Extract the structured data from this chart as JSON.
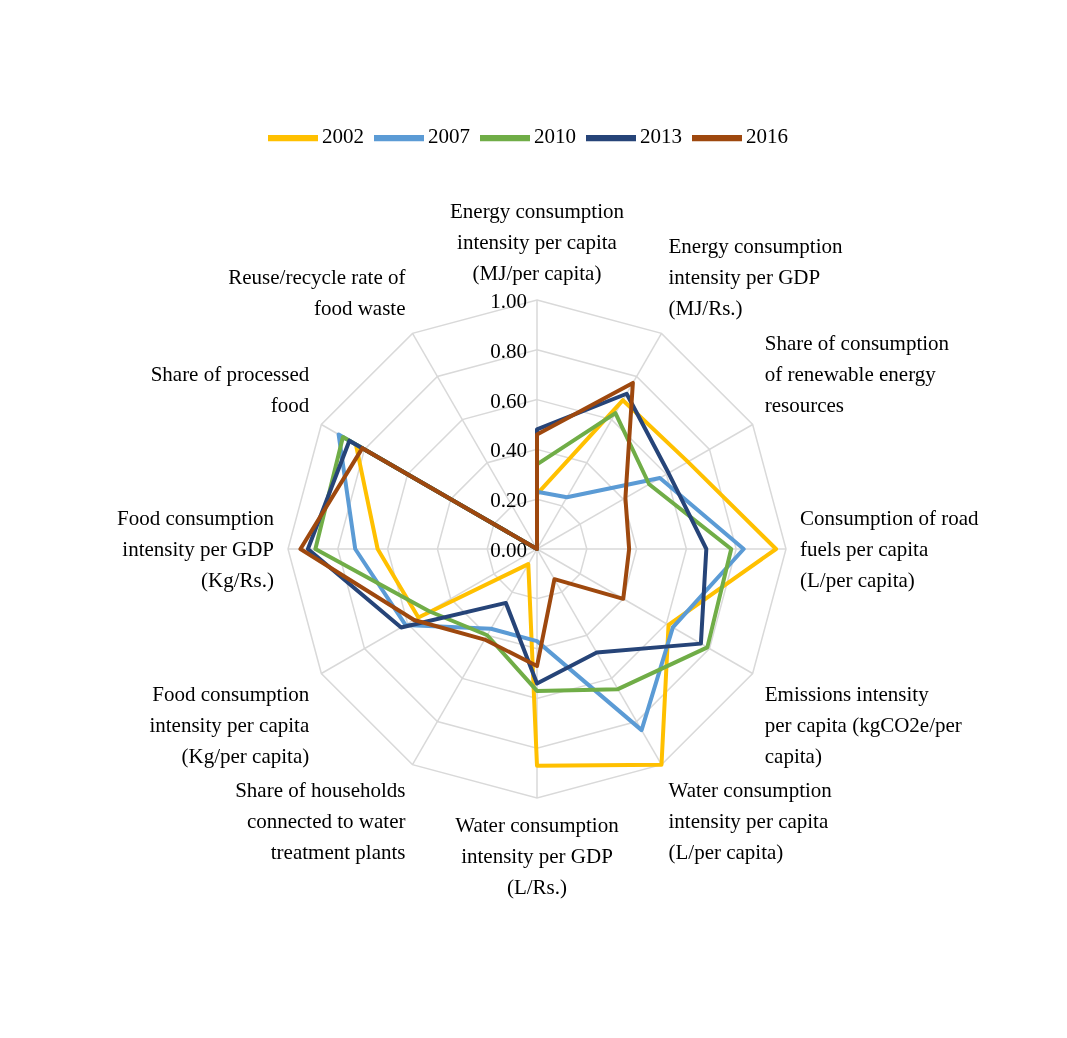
{
  "chart_data": {
    "type": "radar",
    "categories": [
      "Energy consumption intensity per capita (MJ/per capita)",
      "Energy consumption intensity per GDP (MJ/Rs.)",
      "Share of consumption of renewable energy resources",
      "Consumption of road fuels per capita (L/per capita)",
      "Emissions intensity per capita (kgCO2e/per capita)",
      "Water consumption intensity per capita (L/per capita)",
      "Water consumption intensity per GDP (L/Rs.)",
      "Share of households connected to water treatment plants",
      "Food consumption intensity per capita (Kg/per capita)",
      "Food consumption intensity per GDP (Kg/Rs.)",
      "Share of processed food",
      "Reuse/recycle rate of food waste"
    ],
    "series": [
      {
        "name": "2002",
        "color": "#ffc000",
        "values": [
          0.22,
          0.69,
          0.7,
          0.96,
          0.61,
          1.0,
          0.87,
          0.07,
          0.55,
          0.64,
          0.84,
          0
        ]
      },
      {
        "name": "2007",
        "color": "#5b9bd5",
        "values": [
          0.23,
          0.24,
          0.57,
          0.83,
          0.63,
          0.84,
          0.37,
          0.37,
          0.61,
          0.73,
          0.92,
          0
        ]
      },
      {
        "name": "2010",
        "color": "#70ad47",
        "values": [
          0.34,
          0.63,
          0.52,
          0.78,
          0.79,
          0.65,
          0.57,
          0.4,
          0.5,
          0.89,
          0.9,
          0
        ]
      },
      {
        "name": "2013",
        "color": "#264478",
        "values": [
          0.48,
          0.72,
          0.61,
          0.68,
          0.76,
          0.48,
          0.54,
          0.25,
          0.63,
          0.92,
          0.87,
          0
        ]
      },
      {
        "name": "2016",
        "color": "#9e480e",
        "values": [
          0.46,
          0.77,
          0.41,
          0.37,
          0.4,
          0.14,
          0.47,
          0.42,
          0.57,
          0.95,
          0.81,
          0
        ]
      }
    ],
    "ylim": [
      0,
      1
    ],
    "yticks": [
      {
        "value": 0,
        "label": "0.00"
      },
      {
        "value": 0.2,
        "label": "0.20"
      },
      {
        "value": 0.4,
        "label": "0.40"
      },
      {
        "value": 0.6,
        "label": "0.60"
      },
      {
        "value": 0.8,
        "label": "0.80"
      },
      {
        "value": 1,
        "label": "1.00"
      }
    ],
    "grid": true,
    "legend": "top"
  }
}
